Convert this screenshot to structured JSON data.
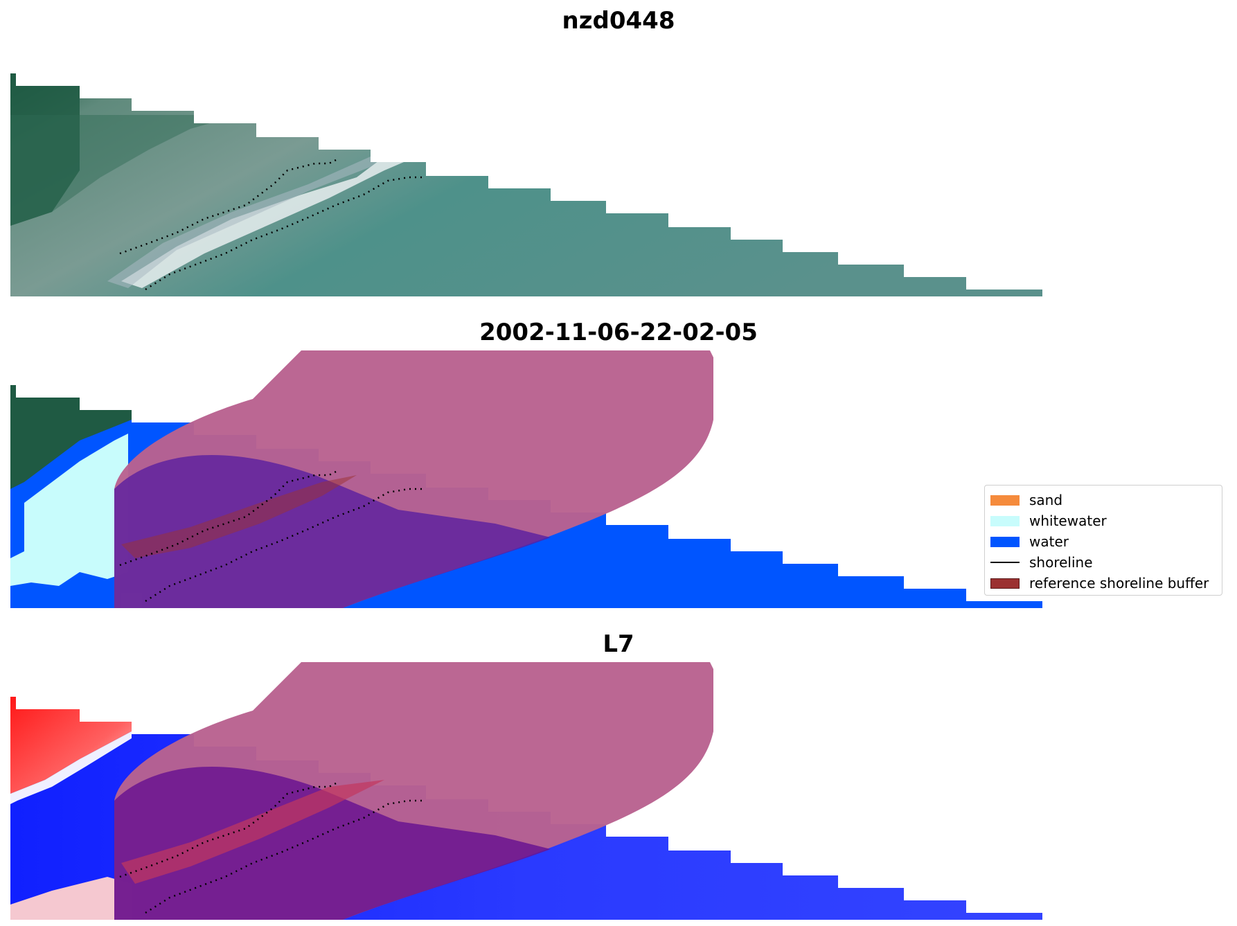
{
  "panels": [
    {
      "title": "nzd0448",
      "kind": "rgb"
    },
    {
      "title": "2002-11-06-22-02-05",
      "kind": "classified"
    },
    {
      "title": "L7",
      "kind": "index"
    }
  ],
  "legend": {
    "items": [
      {
        "label": "sand",
        "color": "#f58b3c",
        "type": "patch"
      },
      {
        "label": "whitewater",
        "color": "#c8fcfc",
        "type": "patch"
      },
      {
        "label": "water",
        "color": "#0055ff",
        "type": "patch"
      },
      {
        "label": "shoreline",
        "color": "#000000",
        "type": "line"
      },
      {
        "label": "reference shoreline buffer",
        "color": "#9b3131",
        "type": "patch"
      }
    ]
  },
  "colors": {
    "land_dark": "#1f5a43",
    "land_mid": "#6e8f86",
    "water_rgb": "#4e918a",
    "water_class": "#0055ff",
    "whitewater_class": "#c8fcfc",
    "buffer_overlay": "#b9628f",
    "index_red": "#ff2020",
    "index_blue": "#1020ff"
  }
}
